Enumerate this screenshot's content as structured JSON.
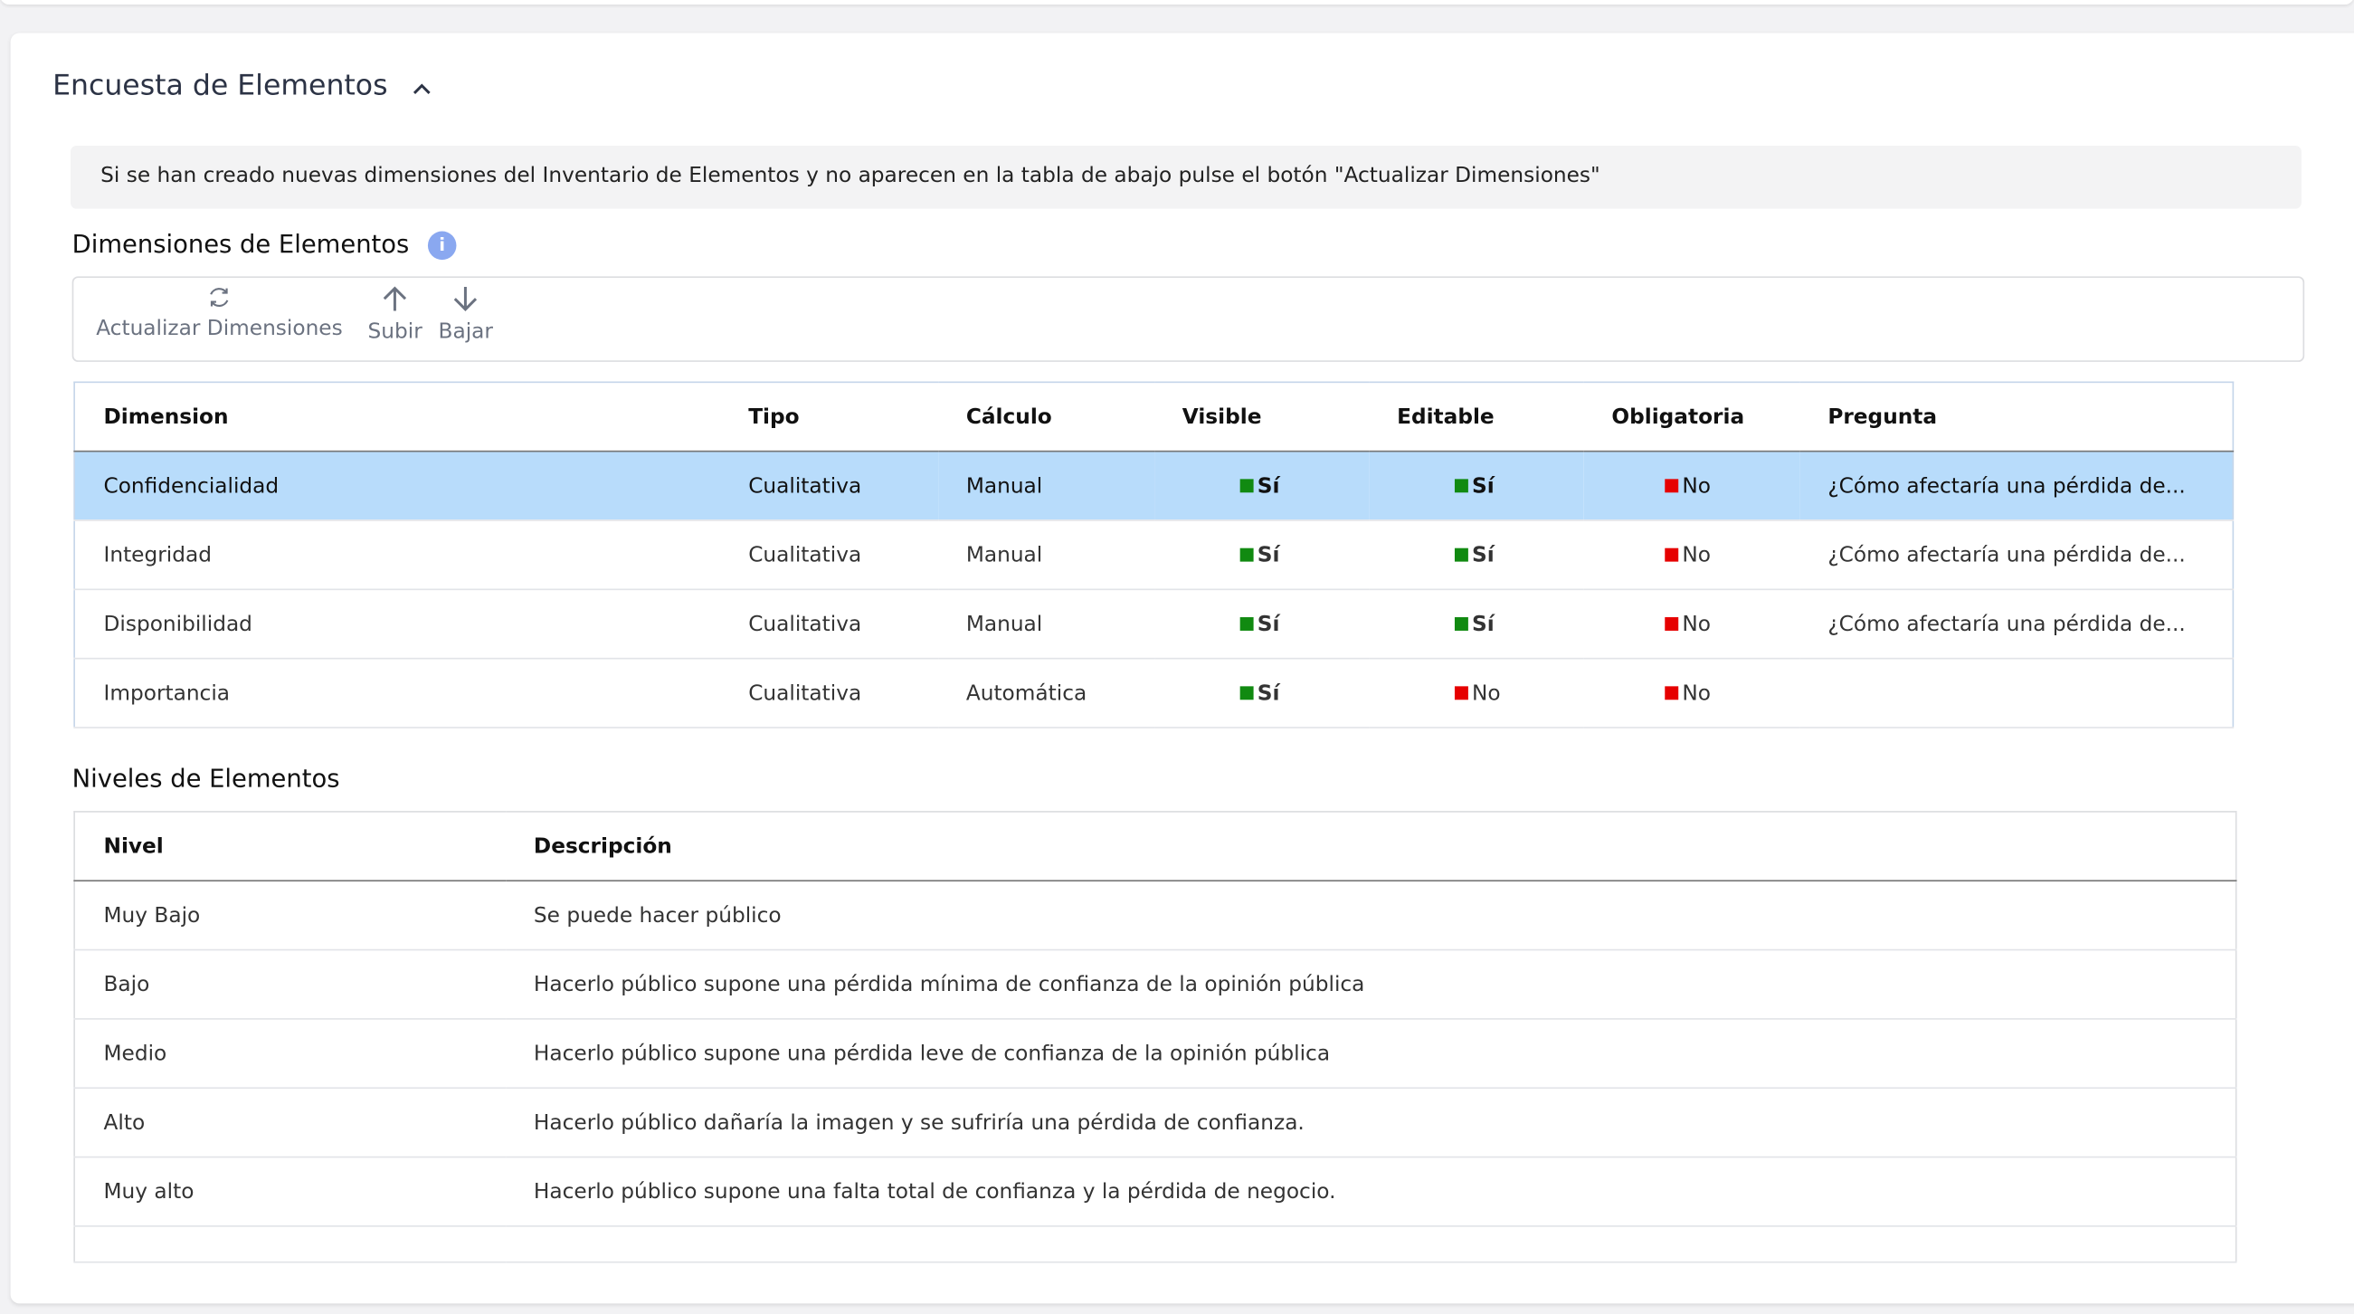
{
  "panel": {
    "title": "Encuesta de Elementos"
  },
  "notice": "Si se han creado nuevas dimensiones del Inventario de Elementos y no aparecen en la tabla de abajo pulse el botón \"Actualizar Dimensiones\"",
  "dimensions": {
    "title": "Dimensiones de Elementos",
    "toolbar": [
      "Actualizar Dimensiones",
      "Subir",
      "Bajar"
    ],
    "columns": [
      "Dimension",
      "Tipo",
      "Cálculo",
      "Visible",
      "Editable",
      "Obligatoria",
      "Pregunta"
    ],
    "rows": [
      [
        "Confidencialidad",
        "Cualitativa",
        "Manual",
        {
          "label": "Sí",
          "color": "#118a11"
        },
        {
          "label": "Sí",
          "color": "#118a11"
        },
        {
          "label": "No",
          "color": "#e60000"
        },
        "¿Cómo afectaría una pérdida de..."
      ],
      [
        "Integridad",
        "Cualitativa",
        "Manual",
        {
          "label": "Sí",
          "color": "#118a11"
        },
        {
          "label": "Sí",
          "color": "#118a11"
        },
        {
          "label": "No",
          "color": "#e60000"
        },
        "¿Cómo afectaría una pérdida de..."
      ],
      [
        "Disponibilidad",
        "Cualitativa",
        "Manual",
        {
          "label": "Sí",
          "color": "#118a11"
        },
        {
          "label": "Sí",
          "color": "#118a11"
        },
        {
          "label": "No",
          "color": "#e60000"
        },
        "¿Cómo afectaría una pérdida de..."
      ],
      [
        "Importancia",
        "Cualitativa",
        "Automática",
        {
          "label": "Sí",
          "color": "#118a11"
        },
        {
          "label": "No",
          "color": "#e60000"
        },
        {
          "label": "No",
          "color": "#e60000"
        },
        null
      ]
    ],
    "selected_row": 0
  },
  "levels": {
    "title": "Niveles de Elementos",
    "columns": [
      "Nivel",
      "Descripción"
    ],
    "rows": [
      [
        "Muy Bajo",
        "Se puede hacer público"
      ],
      [
        "Bajo",
        "Hacerlo público supone una pérdida mínima de confianza de la opinión pública"
      ],
      [
        "Medio",
        "Hacerlo público supone una pérdida leve de confianza de la opinión pública"
      ],
      [
        "Alto",
        "Hacerlo público dañaría la imagen y se sufriría una pérdida de confianza."
      ],
      [
        "Muy alto",
        "Hacerlo público supone una falta total de confianza y la pérdida de negocio."
      ]
    ]
  }
}
